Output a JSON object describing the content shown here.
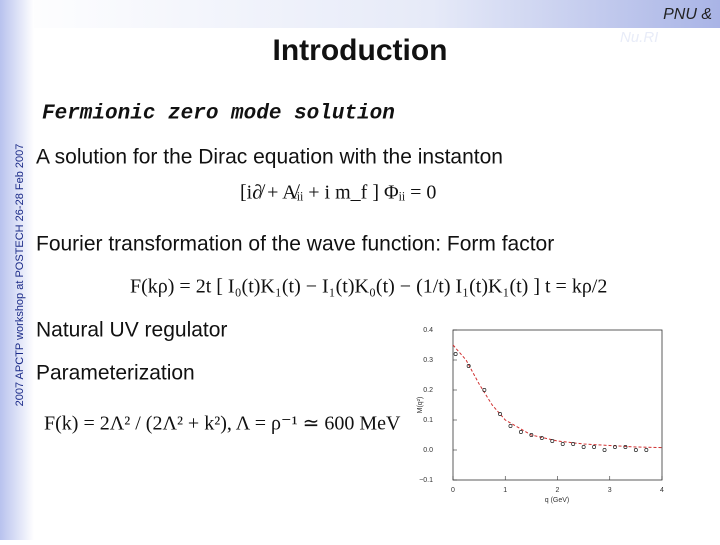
{
  "header": {
    "title": "Introduction",
    "logo_line1": "PNU &",
    "logo_line2": "Nu.RI"
  },
  "side_note": "2007 APCTP workshop at POSTECH 26-28 Feb 2007",
  "subtitle": "Fermionic zero mode solution",
  "items": [
    {
      "text": "A solution for the Dirac equation with the instanton",
      "equation": "[i∂̸ + A̸ᵢᵢ + i m_f ] Φᵢᵢ = 0"
    },
    {
      "text": "Fourier transformation of the wave function: Form factor",
      "equation": "F(kρ) = 2t [ I₀(t)K₁(t) − I₁(t)K₀(t) − (1/t) I₁(t)K₁(t) ]  t = kρ/2"
    },
    {
      "text": "Natural UV regulator"
    },
    {
      "text": "Parameterization",
      "equation": "F(k) = 2Λ² / (2Λ² + k²),   Λ = ρ⁻¹ ≃ 600 MeV"
    }
  ],
  "figure": {
    "xlabel": "q (GeV)",
    "ylabel": "M(q²)",
    "xlim": [
      0,
      4
    ],
    "ylim": [
      -0.1,
      0.4
    ],
    "xticks": [
      0,
      1,
      2,
      3,
      4
    ],
    "yticks": [
      {
        "value": -0.1,
        "label": "−0.1"
      },
      {
        "value": 0,
        "label": "0.0"
      },
      0.1,
      0.2,
      0.3,
      0.4
    ],
    "curve": {
      "color": "#d03030",
      "x": [
        0,
        0.25,
        0.5,
        0.75,
        1,
        1.5,
        2,
        2.5,
        3,
        3.5,
        4
      ],
      "y": [
        0.35,
        0.3,
        0.22,
        0.15,
        0.1,
        0.05,
        0.03,
        0.02,
        0.015,
        0.01,
        0.008
      ]
    },
    "points": {
      "x": [
        0.05,
        0.3,
        0.6,
        0.9,
        1.1,
        1.3,
        1.5,
        1.7,
        1.9,
        2.1,
        2.3,
        2.5,
        2.7,
        2.9,
        3.1,
        3.3,
        3.5,
        3.7
      ],
      "y": [
        0.32,
        0.28,
        0.2,
        0.12,
        0.08,
        0.06,
        0.05,
        0.04,
        0.03,
        0.02,
        0.02,
        0.01,
        0.01,
        0.0,
        0.01,
        0.01,
        0.0,
        0.0
      ]
    }
  }
}
